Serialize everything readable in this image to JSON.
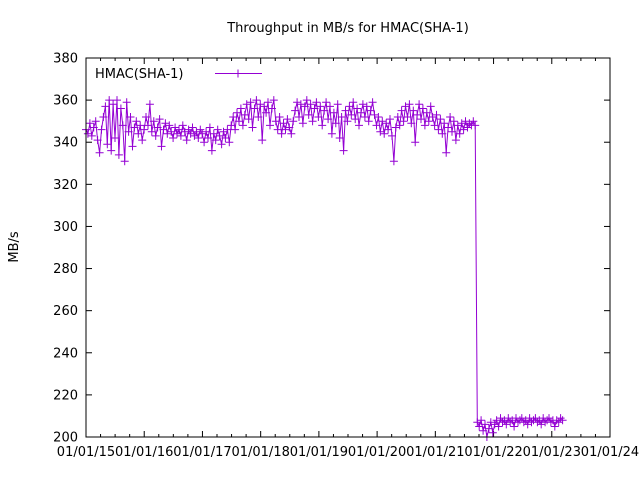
{
  "chart_data": {
    "type": "line",
    "title": "Throughput in MB/s for HMAC(SHA-1)",
    "xlabel": "",
    "ylabel": "MB/s",
    "ylim": [
      200,
      380
    ],
    "y_ticks": [
      200,
      220,
      240,
      260,
      280,
      300,
      320,
      340,
      360,
      380
    ],
    "x_range_years": [
      2015,
      2024
    ],
    "x_tick_labels": [
      "01/01/15",
      "01/01/16",
      "01/01/17",
      "01/01/18",
      "01/01/19",
      "01/01/20",
      "01/01/21",
      "01/01/22",
      "01/01/23",
      "01/01/24"
    ],
    "x_minor_ticks_per_year": 3,
    "grid": false,
    "legend_position": "top-left-inside",
    "marker": "plus",
    "background_color": "#ffffff",
    "axis_color": "#000000",
    "legend": [
      {
        "label": "HMAC(SHA-1)",
        "color": "#9400d3"
      }
    ],
    "series": [
      {
        "name": "HMAC(SHA-1)",
        "color": "#9400d3",
        "connected": true,
        "segments": [
          {
            "x_start": 2015.0,
            "x_step": 0.03326,
            "values": [
              346,
              344,
              349,
              343,
              347,
              350,
              341,
              335,
              346,
              352,
              357,
              339,
              360,
              336,
              358,
              342,
              360,
              334,
              356,
              348,
              331,
              359,
              345,
              352,
              338,
              347,
              350,
              344,
              348,
              341,
              346,
              352,
              348,
              358,
              345,
              350,
              343,
              347,
              351,
              338,
              346,
              349,
              344,
              348,
              345,
              342,
              347,
              344,
              346,
              343,
              348,
              345,
              341,
              346,
              344,
              347,
              343,
              345,
              342,
              346,
              344,
              340,
              345,
              342,
              347,
              336,
              344,
              341,
              346,
              343,
              339,
              345,
              342,
              346,
              340,
              348,
              352,
              346,
              354,
              350,
              356,
              348,
              353,
              358,
              351,
              359,
              347,
              356,
              360,
              352,
              358,
              341,
              357,
              354,
              359,
              348,
              356,
              360,
              350,
              346,
              352,
              344,
              349,
              346,
              351,
              347,
              344,
              350,
              355,
              359,
              352,
              358,
              349,
              357,
              360,
              353,
              358,
              350,
              356,
              359,
              352,
              357,
              348,
              355,
              359,
              351,
              357,
              344,
              354,
              349,
              358,
              342,
              352,
              336,
              355,
              350,
              357,
              353,
              359,
              351,
              356,
              348,
              354,
              358,
              352,
              357,
              350,
              355,
              359,
              353,
              348,
              352,
              345,
              350,
              344,
              349,
              346,
              351,
              343,
              331,
              347,
              352,
              348,
              355,
              350,
              357,
              352,
              358,
              349,
              355,
              340,
              353,
              358,
              351,
              356,
              348,
              354,
              350,
              357,
              352,
              348,
              353,
              346,
              351,
              344,
              349,
              335,
              347,
              352,
              345,
              350,
              341,
              348,
              344,
              349,
              346,
              350,
              347,
              349,
              348,
              350,
              348
            ]
          },
          {
            "x_start": 2021.72,
            "x_step": 0.0333,
            "values": [
              207,
              205,
              208,
              203,
              206,
              200,
              204,
              207,
              202,
              206,
              208,
              205,
              209,
              207,
              208,
              206,
              209,
              207,
              208,
              205,
              209,
              207,
              208,
              209,
              207,
              208,
              206,
              209,
              207,
              208,
              209,
              207,
              208,
              206,
              209,
              207,
              208,
              209,
              207,
              208,
              205,
              208,
              207,
              209,
              208
            ]
          }
        ]
      }
    ]
  }
}
